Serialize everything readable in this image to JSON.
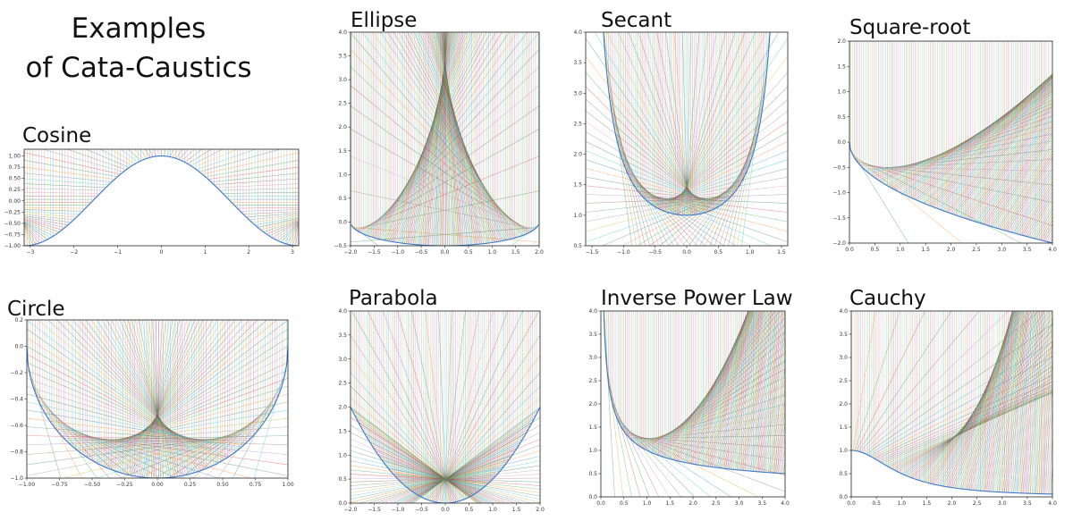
{
  "page": {
    "title_line1": "Examples",
    "title_line2": "of Cata-Caustics"
  },
  "chart_data": [
    {
      "type": "line",
      "title": "Cosine",
      "curve": "y = cos(x)",
      "rays": "vertical incoming rays reflected off the curve",
      "xlim": [
        -3.1416,
        3.1416
      ],
      "ylim": [
        -1.0,
        1.15
      ],
      "xticks": [
        -3,
        -2,
        -1,
        0,
        1,
        2,
        3
      ],
      "yticks": [
        -1.0,
        -0.75,
        -0.5,
        -0.25,
        0.0,
        0.25,
        0.5,
        0.75,
        1.0
      ],
      "xtick_labels": [
        "−3",
        "−2",
        "−1",
        "0",
        "1",
        "2",
        "3"
      ],
      "ytick_labels": [
        "−1.00",
        "−0.75",
        "−0.50",
        "−0.25",
        "0.00",
        "0.25",
        "0.50",
        "0.75",
        "1.00"
      ]
    },
    {
      "type": "line",
      "title": "Ellipse",
      "curve": "lower half of ellipse x²/4 + y²/0.25 = 1",
      "rays": "vertical incoming rays reflected off the curve",
      "xlim": [
        -2,
        2
      ],
      "ylim": [
        -0.5,
        4
      ],
      "xticks": [
        -2.0,
        -1.5,
        -1.0,
        -0.5,
        0.0,
        0.5,
        1.0,
        1.5,
        2.0
      ],
      "yticks": [
        -0.5,
        0.0,
        0.5,
        1.0,
        1.5,
        2.0,
        2.5,
        3.0,
        3.5,
        4.0
      ],
      "xtick_labels": [
        "−2.0",
        "−1.5",
        "−1.0",
        "−0.5",
        "0.0",
        "0.5",
        "1.0",
        "1.5",
        "2.0"
      ],
      "ytick_labels": [
        "−0.5",
        "0.0",
        "0.5",
        "1.0",
        "1.5",
        "2.0",
        "2.5",
        "3.0",
        "3.5",
        "4.0"
      ]
    },
    {
      "type": "line",
      "title": "Secant",
      "curve": "y = sec(x)",
      "rays": "vertical incoming rays reflected off the curve",
      "xlim": [
        -1.6,
        1.6
      ],
      "ylim": [
        0.5,
        4
      ],
      "xticks": [
        -1.5,
        -1.0,
        -0.5,
        0.0,
        0.5,
        1.0,
        1.5
      ],
      "yticks": [
        0.5,
        1.0,
        1.5,
        2.0,
        2.5,
        3.0,
        3.5,
        4.0
      ],
      "xtick_labels": [
        "−1.5",
        "−1.0",
        "−0.5",
        "0.0",
        "0.5",
        "1.0",
        "1.5"
      ],
      "ytick_labels": [
        "0.5",
        "1.0",
        "1.5",
        "2.0",
        "2.5",
        "3.0",
        "3.5",
        "4.0"
      ]
    },
    {
      "type": "line",
      "title": "Square-root",
      "curve": "y = −√x",
      "rays": "vertical incoming rays reflected off the curve",
      "xlim": [
        0,
        4
      ],
      "ylim": [
        -2,
        2
      ],
      "xticks": [
        0.0,
        0.5,
        1.0,
        1.5,
        2.0,
        2.5,
        3.0,
        3.5,
        4.0
      ],
      "yticks": [
        -2.0,
        -1.5,
        -1.0,
        -0.5,
        0.0,
        0.5,
        1.0,
        1.5,
        2.0
      ],
      "xtick_labels": [
        "0.0",
        "0.5",
        "1.0",
        "1.5",
        "2.0",
        "2.5",
        "3.0",
        "3.5",
        "4.0"
      ],
      "ytick_labels": [
        "−2.0",
        "−1.5",
        "−1.0",
        "−0.5",
        "0.0",
        "0.5",
        "1.0",
        "1.5",
        "2.0"
      ]
    },
    {
      "type": "line",
      "title": "Circle",
      "curve": "lower half of unit circle",
      "rays": "vertical incoming rays reflected off the curve",
      "xlim": [
        -1,
        1
      ],
      "ylim": [
        -1,
        0.2
      ],
      "xticks": [
        -1.0,
        -0.75,
        -0.5,
        -0.25,
        0.0,
        0.25,
        0.5,
        0.75,
        1.0
      ],
      "yticks": [
        -1.0,
        -0.8,
        -0.6,
        -0.4,
        -0.2,
        0.0,
        0.2
      ],
      "xtick_labels": [
        "−1.00",
        "−0.75",
        "−0.50",
        "−0.25",
        "0.00",
        "0.25",
        "0.50",
        "0.75",
        "1.00"
      ],
      "ytick_labels": [
        "−1.0",
        "−0.8",
        "−0.6",
        "−0.4",
        "−0.2",
        "0.0",
        "0.2"
      ]
    },
    {
      "type": "line",
      "title": "Parabola",
      "curve": "y = x²/2",
      "rays": "vertical incoming rays reflected off the curve",
      "xlim": [
        -2,
        2
      ],
      "ylim": [
        0,
        4
      ],
      "xticks": [
        -2.0,
        -1.5,
        -1.0,
        -0.5,
        0.0,
        0.5,
        1.0,
        1.5,
        2.0
      ],
      "yticks": [
        0.0,
        0.5,
        1.0,
        1.5,
        2.0,
        2.5,
        3.0,
        3.5,
        4.0
      ],
      "xtick_labels": [
        "−2.0",
        "−1.5",
        "−1.0",
        "−0.5",
        "0.0",
        "0.5",
        "1.0",
        "1.5",
        "2.0"
      ],
      "ytick_labels": [
        "0.0",
        "0.5",
        "1.0",
        "1.5",
        "2.0",
        "2.5",
        "3.0",
        "3.5",
        "4.0"
      ]
    },
    {
      "type": "line",
      "title": "Inverse Power Law",
      "curve": "y = 1/√x",
      "rays": "vertical incoming rays reflected off the curve",
      "xlim": [
        0,
        4
      ],
      "ylim": [
        0,
        4
      ],
      "xticks": [
        0.0,
        0.5,
        1.0,
        1.5,
        2.0,
        2.5,
        3.0,
        3.5,
        4.0
      ],
      "yticks": [
        0.0,
        0.5,
        1.0,
        1.5,
        2.0,
        2.5,
        3.0,
        3.5,
        4.0
      ],
      "xtick_labels": [
        "0.0",
        "0.5",
        "1.0",
        "1.5",
        "2.0",
        "2.5",
        "3.0",
        "3.5",
        "4.0"
      ],
      "ytick_labels": [
        "0.0",
        "0.5",
        "1.0",
        "1.5",
        "2.0",
        "2.5",
        "3.0",
        "3.5",
        "4.0"
      ]
    },
    {
      "type": "line",
      "title": "Cauchy",
      "curve": "y = 1/(1+x²)",
      "rays": "vertical incoming rays reflected off the curve",
      "xlim": [
        0,
        4
      ],
      "ylim": [
        0,
        4
      ],
      "xticks": [
        0.0,
        0.5,
        1.0,
        1.5,
        2.0,
        2.5,
        3.0,
        3.5,
        4.0
      ],
      "yticks": [
        0.0,
        0.5,
        1.0,
        1.5,
        2.0,
        2.5,
        3.0,
        3.5,
        4.0
      ],
      "xtick_labels": [
        "0.0",
        "0.5",
        "1.0",
        "1.5",
        "2.0",
        "2.5",
        "3.0",
        "3.5",
        "4.0"
      ],
      "ytick_labels": [
        "0.0",
        "0.5",
        "1.0",
        "1.5",
        "2.0",
        "2.5",
        "3.0",
        "3.5",
        "4.0"
      ]
    }
  ]
}
